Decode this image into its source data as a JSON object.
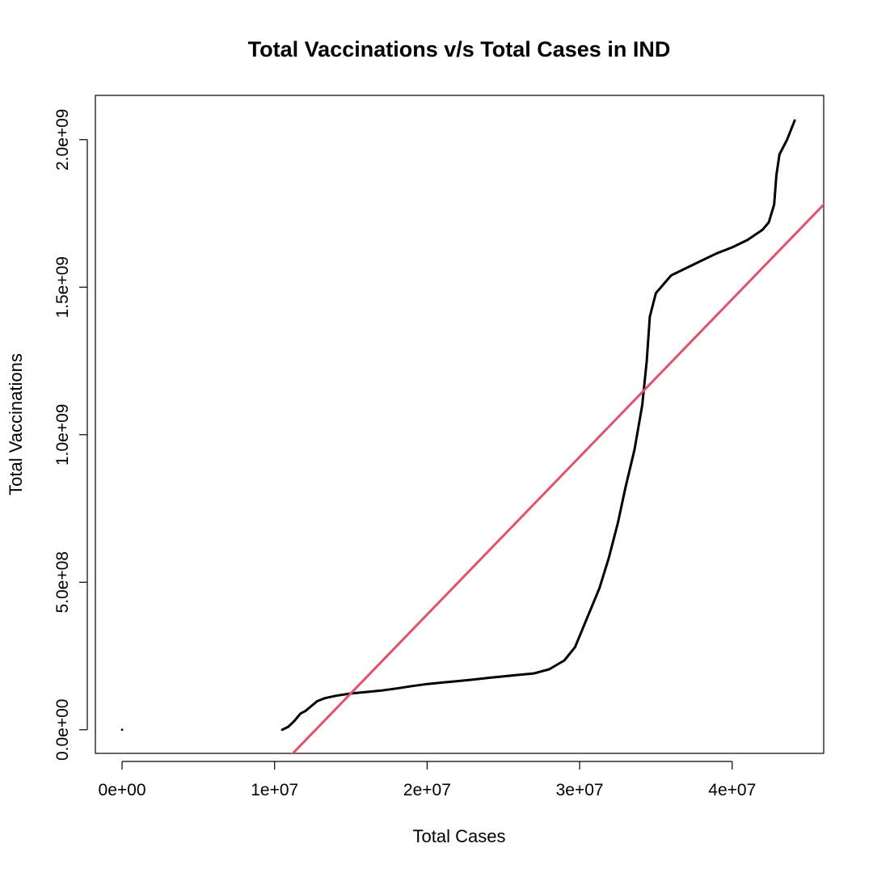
{
  "chart_data": {
    "type": "line",
    "title": "Total Vaccinations v/s Total Cases in IND",
    "xlabel": "Total Cases",
    "ylabel": "Total Vaccinations",
    "xlim": [
      -1750000,
      46000000
    ],
    "ylim": [
      -80000000,
      2150000000
    ],
    "x_ticks": [
      {
        "value": 0,
        "label": "0e+00"
      },
      {
        "value": 10000000,
        "label": "1e+07"
      },
      {
        "value": 20000000,
        "label": "2e+07"
      },
      {
        "value": 30000000,
        "label": "3e+07"
      },
      {
        "value": 40000000,
        "label": "4e+07"
      }
    ],
    "y_ticks": [
      {
        "value": 0,
        "label": "0.0e+00"
      },
      {
        "value": 500000000,
        "label": "5.0e+08"
      },
      {
        "value": 1000000000,
        "label": "1.0e+09"
      },
      {
        "value": 1500000000,
        "label": "1.5e+09"
      },
      {
        "value": 2000000000,
        "label": "2.0e+09"
      }
    ],
    "grid": false,
    "legend": "none",
    "series": [
      {
        "color": "#000000",
        "points": [
          [
            10500000,
            0
          ],
          [
            10900000,
            10000000
          ],
          [
            11300000,
            30000000
          ],
          [
            11700000,
            55000000
          ],
          [
            12000000,
            63000000
          ],
          [
            12400000,
            80000000
          ],
          [
            12800000,
            97000000
          ],
          [
            13300000,
            107000000
          ],
          [
            14000000,
            115000000
          ],
          [
            15000000,
            123000000
          ],
          [
            16000000,
            128000000
          ],
          [
            17000000,
            133000000
          ],
          [
            18000000,
            140000000
          ],
          [
            19000000,
            148000000
          ],
          [
            20000000,
            155000000
          ],
          [
            21000000,
            160000000
          ],
          [
            22000000,
            165000000
          ],
          [
            23000000,
            170000000
          ],
          [
            24000000,
            176000000
          ],
          [
            25000000,
            181000000
          ],
          [
            26000000,
            186000000
          ],
          [
            27000000,
            191000000
          ],
          [
            28000000,
            205000000
          ],
          [
            29000000,
            235000000
          ],
          [
            29700000,
            280000000
          ],
          [
            30500000,
            380000000
          ],
          [
            31300000,
            480000000
          ],
          [
            31900000,
            580000000
          ],
          [
            32500000,
            700000000
          ],
          [
            33000000,
            820000000
          ],
          [
            33600000,
            950000000
          ],
          [
            34100000,
            1100000000
          ],
          [
            34400000,
            1250000000
          ],
          [
            34600000,
            1400000000
          ],
          [
            35000000,
            1480000000
          ],
          [
            35500000,
            1510000000
          ],
          [
            36000000,
            1540000000
          ],
          [
            37000000,
            1565000000
          ],
          [
            38000000,
            1590000000
          ],
          [
            39000000,
            1615000000
          ],
          [
            40000000,
            1635000000
          ],
          [
            41000000,
            1660000000
          ],
          [
            42000000,
            1695000000
          ],
          [
            42400000,
            1720000000
          ],
          [
            42750000,
            1780000000
          ],
          [
            42900000,
            1880000000
          ],
          [
            43100000,
            1950000000
          ],
          [
            43600000,
            2000000000
          ],
          [
            44100000,
            2065000000
          ]
        ]
      },
      {
        "color": "#000000",
        "points": [
          [
            0,
            0
          ]
        ]
      },
      {
        "color": "#DF536B",
        "points": [
          [
            11100000,
            -85000000
          ],
          [
            46000000,
            1780000000
          ]
        ]
      }
    ]
  }
}
